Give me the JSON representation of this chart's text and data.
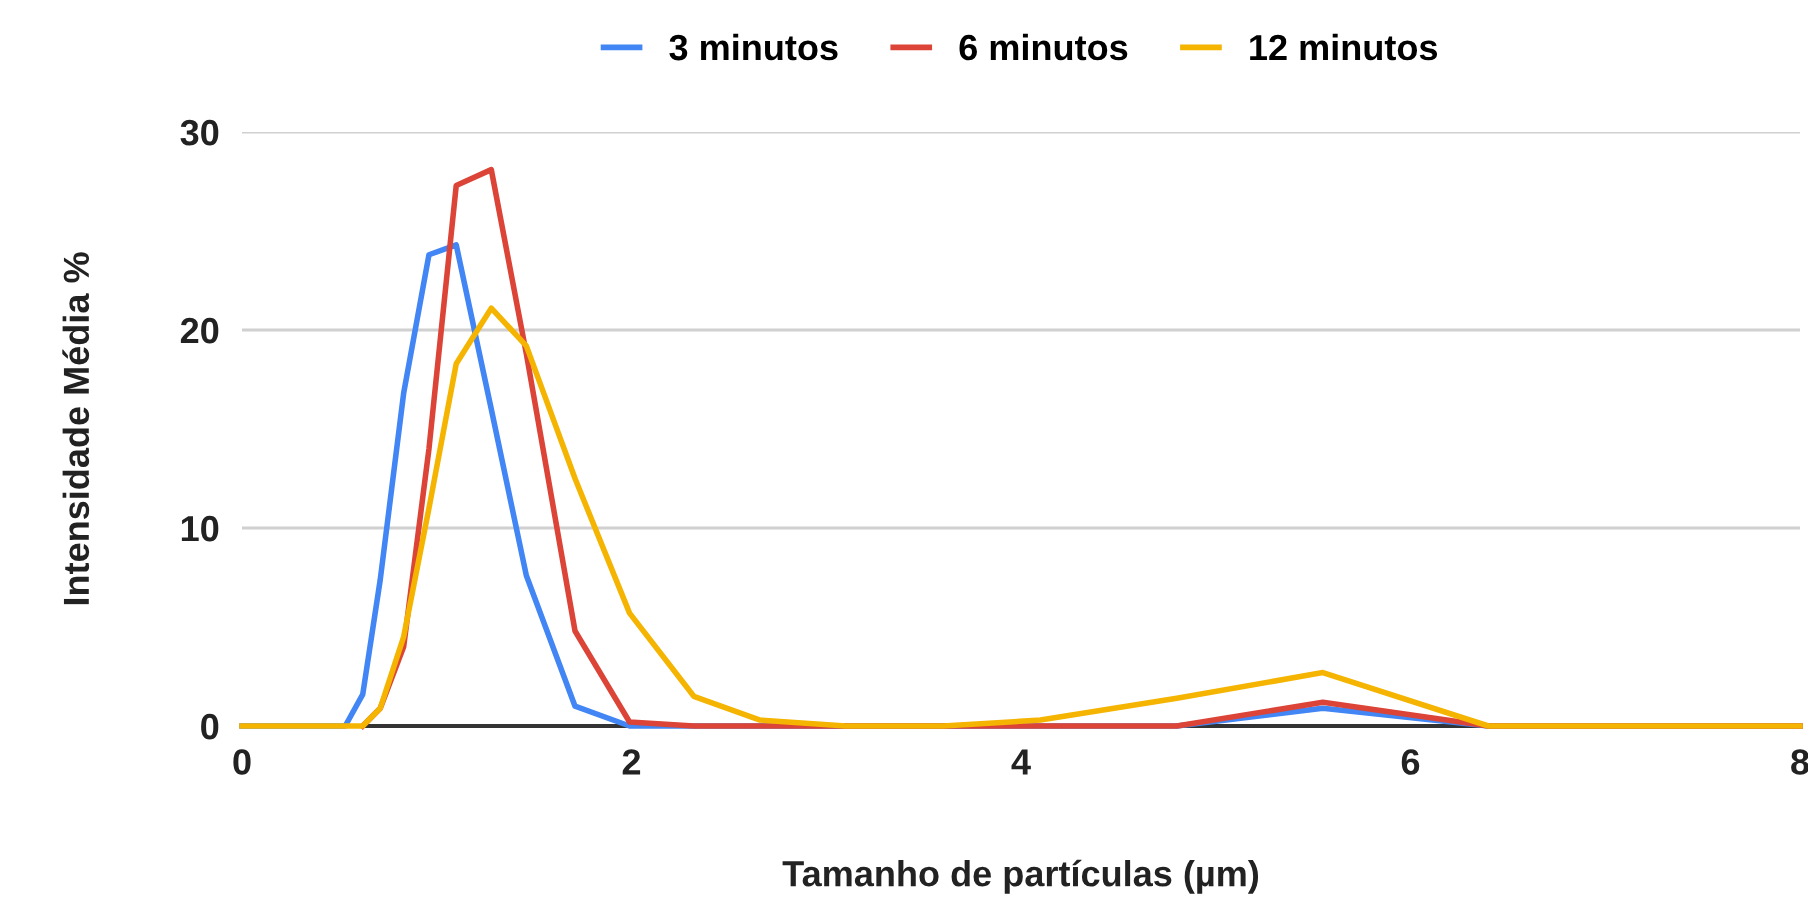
{
  "chart_data": {
    "type": "line",
    "xlabel": "Tamanho de partículas (µm)",
    "ylabel": "Intensidade Média %",
    "x": [
      0,
      0.53,
      0.62,
      0.71,
      0.83,
      0.96,
      1.1,
      1.28,
      1.46,
      1.71,
      1.99,
      2.32,
      2.66,
      3.1,
      3.6,
      4.1,
      4.8,
      5.55,
      6.4,
      8
    ],
    "series": [
      {
        "name": "3 minutos",
        "color": "#4285f4",
        "values": [
          0,
          0,
          1.6,
          7.4,
          16.8,
          23.8,
          24.3,
          16,
          7.6,
          1.0,
          0,
          0,
          0,
          0,
          0,
          0,
          0,
          0.9,
          0,
          0
        ]
      },
      {
        "name": "6 minutos",
        "color": "#db4437",
        "values": [
          null,
          null,
          0,
          0.9,
          4,
          14,
          27.3,
          28.1,
          18.8,
          4.8,
          0.2,
          0,
          0,
          0,
          0,
          0,
          0,
          1.2,
          0,
          0
        ]
      },
      {
        "name": "12 minutos",
        "color": "#f4b400",
        "values": [
          0,
          0,
          0,
          0.9,
          4.5,
          11,
          18.3,
          21.1,
          19.2,
          12.5,
          5.7,
          1.5,
          0.3,
          0,
          0,
          0.3,
          1.4,
          2.7,
          0,
          0
        ]
      }
    ],
    "xlim": [
      0,
      8
    ],
    "xticks": [
      0,
      2,
      4,
      6,
      8
    ],
    "ylim": [
      0,
      30
    ],
    "yticks": [
      0,
      10,
      20,
      30
    ],
    "grid": "y",
    "legend": "top",
    "marker": "none",
    "line_style": "solid"
  }
}
